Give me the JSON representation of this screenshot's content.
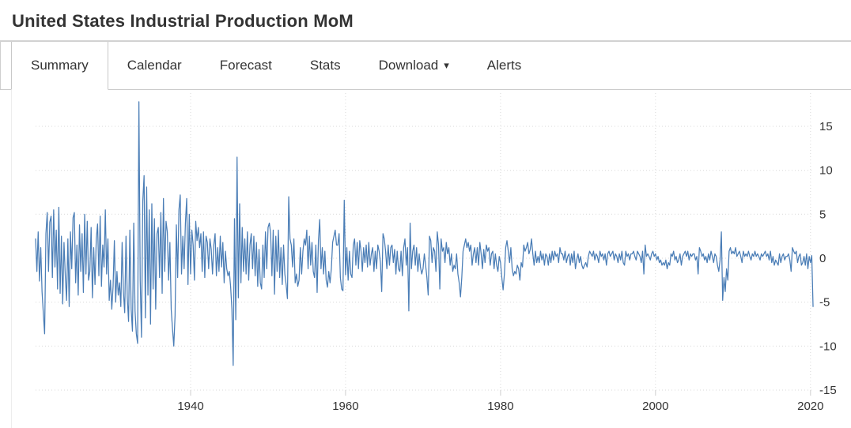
{
  "header": {
    "title": "United States Industrial Production MoM"
  },
  "tabs": {
    "caret_glyph": "▾",
    "items": [
      {
        "label": "Summary",
        "active": true
      },
      {
        "label": "Calendar",
        "active": false
      },
      {
        "label": "Forecast",
        "active": false
      },
      {
        "label": "Stats",
        "active": false
      },
      {
        "label": "Download",
        "active": false,
        "has_dropdown": true
      },
      {
        "label": "Alerts",
        "active": false
      }
    ]
  },
  "chart_data": {
    "type": "line",
    "title": "United States Industrial Production MoM",
    "xlabel": "",
    "ylabel": "",
    "legend": "none",
    "grid": "dotted",
    "x_ticks": [
      1940,
      1960,
      1980,
      2000,
      2020
    ],
    "y_ticks": [
      15,
      10,
      5,
      0,
      -5,
      -10,
      -15
    ],
    "xlim": [
      1920,
      2020.33
    ],
    "ylim": [
      -15,
      18.8
    ],
    "series": [
      {
        "name": "Industrial Production MoM (%)",
        "color": "#4a7db6",
        "x_start": 1920,
        "points_per_year": 6,
        "values": [
          2.2,
          -1.5,
          3.0,
          -2.6,
          1.2,
          -3.8,
          -6.3,
          -8.6,
          2.8,
          5.2,
          -1.5,
          4.1,
          4.8,
          -2.2,
          5.5,
          -1.0,
          3.2,
          -3.5,
          5.8,
          -4.0,
          2.5,
          -5.2,
          1.8,
          -2.0,
          -4.8,
          2.2,
          -5.5,
          3.0,
          -1.2,
          4.6,
          5.2,
          -2.8,
          1.5,
          -4.2,
          3.8,
          -1.5,
          2.8,
          -3.9,
          5.0,
          -1.8,
          4.2,
          -2.5,
          -1.5,
          3.5,
          -4.5,
          1.2,
          -3.0,
          2.2,
          3.9,
          -2.0,
          4.8,
          -3.2,
          1.5,
          -1.0,
          5.5,
          -1.8,
          2.2,
          -4.8,
          -2.5,
          -5.8,
          -3.2,
          2.0,
          -5.0,
          -1.5,
          -4.2,
          -2.8,
          -5.5,
          1.8,
          -3.8,
          -6.2,
          2.5,
          -4.5,
          -7.2,
          3.2,
          -5.8,
          -8.3,
          4.0,
          -6.0,
          -8.6,
          -9.7,
          17.8,
          -2.5,
          -9.0,
          6.5,
          9.4,
          -6.8,
          8.1,
          -4.2,
          5.5,
          -7.5,
          6.2,
          -3.5,
          4.5,
          -5.8,
          2.8,
          3.5,
          -2.2,
          5.2,
          -4.0,
          6.8,
          -1.5,
          4.2,
          3.0,
          -2.5,
          1.8,
          -5.8,
          -8.0,
          -10.0,
          -6.5,
          3.8,
          -2.2,
          5.5,
          7.2,
          -1.8,
          2.5,
          -1.2,
          4.0,
          6.8,
          -3.0,
          5.0,
          -1.8,
          3.2,
          1.5,
          -2.5,
          4.2,
          2.0,
          3.5,
          1.2,
          2.8,
          -1.5,
          3.0,
          -2.2,
          2.5,
          1.8,
          -1.2,
          2.2,
          1.0,
          -1.8,
          1.5,
          2.8,
          -2.0,
          1.2,
          -1.5,
          2.5,
          -1.0,
          1.8,
          -2.8,
          0.8,
          -1.2,
          -2.0,
          -1.5,
          -3.2,
          -5.8,
          -12.2,
          4.5,
          -7.0,
          11.5,
          -4.5,
          6.2,
          -2.8,
          3.5,
          -1.5,
          2.2,
          -1.8,
          3.0,
          -2.5,
          1.5,
          2.8,
          -1.2,
          2.5,
          -2.0,
          1.8,
          -3.2,
          1.0,
          -2.8,
          -3.5,
          1.5,
          -2.2,
          3.0,
          -1.2,
          3.5,
          4.0,
          2.8,
          -2.0,
          3.2,
          -4.1,
          2.5,
          -1.5,
          3.2,
          -2.2,
          1.2,
          -3.0,
          1.5,
          -1.8,
          -3.0,
          -4.6,
          7.0,
          2.2,
          1.5,
          -1.0,
          2.2,
          -2.8,
          -1.8,
          -3.2,
          -2.5,
          1.2,
          -1.8,
          0.8,
          2.2,
          1.5,
          3.2,
          -1.2,
          2.5,
          -0.8,
          1.8,
          -1.5,
          -2.2,
          1.5,
          -3.9,
          2.0,
          4.4,
          -1.2,
          1.2,
          -1.8,
          0.8,
          -2.5,
          -3.3,
          -1.5,
          -2.8,
          -1.2,
          1.8,
          2.5,
          3.2,
          1.5,
          1.5,
          2.8,
          -2.2,
          -3.5,
          -3.7,
          6.6,
          -1.9,
          1.2,
          -2.5,
          0.8,
          -1.8,
          -2.2,
          1.5,
          2.2,
          -0.8,
          1.8,
          -1.2,
          2.0,
          0.8,
          -1.5,
          1.2,
          -0.5,
          1.5,
          -1.0,
          1.8,
          -0.8,
          0.5,
          1.2,
          -1.5,
          0.8,
          -1.2,
          1.5,
          0.8,
          -0.5,
          -3.8,
          2.8,
          2.2,
          0.8,
          -1.2,
          1.5,
          -0.8,
          1.2,
          1.5,
          -0.5,
          1.0,
          -1.8,
          0.8,
          -1.2,
          -1.5,
          0.8,
          -2.0,
          1.2,
          2.2,
          -0.8,
          1.2,
          -6.0,
          4.0,
          -1.2,
          0.8,
          1.5,
          -0.8,
          1.2,
          -1.5,
          0.5,
          -1.0,
          -1.8,
          -1.2,
          0.5,
          -0.8,
          -2.2,
          -4.2,
          2.5,
          2.0,
          -0.5,
          1.2,
          0.8,
          -1.5,
          3.0,
          1.5,
          -3.5,
          2.2,
          0.8,
          1.2,
          -0.5,
          1.8,
          0.5,
          1.2,
          -0.8,
          0.5,
          -1.5,
          -0.8,
          -1.2,
          0.5,
          -1.8,
          -2.8,
          -4.4,
          -2.2,
          0.8,
          1.5,
          2.2,
          1.2,
          1.8,
          0.8,
          1.5,
          -0.8,
          0.5,
          1.2,
          -0.5,
          1.2,
          -0.8,
          1.8,
          0.5,
          -1.2,
          1.0,
          -0.5,
          1.5,
          0.8,
          1.2,
          -0.8,
          0.5,
          0.8,
          -1.2,
          0.5,
          -0.8,
          -1.5,
          0.2,
          -0.5,
          -2.2,
          -3.6,
          -1.8,
          1.2,
          2.0,
          0.8,
          -0.5,
          1.2,
          -1.2,
          -2.0,
          -1.5,
          -1.8,
          -0.8,
          -1.2,
          -2.5,
          -0.5,
          -1.0,
          1.5,
          0.8,
          1.2,
          1.8,
          0.5,
          1.0,
          2.2,
          0.5,
          -0.8,
          0.8,
          -0.5,
          0.2,
          -0.5,
          0.8,
          -0.2,
          0.5,
          -0.8,
          0.5,
          0.2,
          -0.8,
          0.5,
          -0.5,
          0.8,
          -0.2,
          0.8,
          0.2,
          0.5,
          -0.5,
          1.2,
          0.5,
          0.5,
          -0.2,
          0.8,
          -0.5,
          0.2,
          0.5,
          -0.8,
          0.5,
          -0.5,
          0.8,
          -1.2,
          -0.2,
          0.5,
          -0.5,
          0.2,
          -0.8,
          -1.2,
          -0.8,
          -0.5,
          -1.0,
          0.2,
          0.8,
          0.5,
          0.2,
          0.8,
          -0.2,
          0.5,
          0.2,
          -0.5,
          0.8,
          0.2,
          0.5,
          -0.2,
          0.5,
          -0.8,
          0.5,
          0.8,
          0.2,
          0.5,
          0.8,
          -0.2,
          0.5,
          0.2,
          -0.5,
          0.5,
          -0.2,
          0.8,
          -0.5,
          -0.8,
          0.8,
          0.2,
          0.5,
          -0.2,
          0.5,
          0.5,
          0.8,
          0.2,
          -0.2,
          0.8,
          0.5,
          0.2,
          -0.5,
          0.8,
          -1.8,
          1.5,
          0.2,
          0.5,
          0.2,
          -0.2,
          0.5,
          0.8,
          0.2,
          0.5,
          -0.2,
          0.2,
          -0.5,
          -0.2,
          -0.8,
          -0.5,
          -0.8,
          -0.2,
          -1.2,
          -0.5,
          -0.8,
          0.5,
          0.2,
          0.8,
          -0.2,
          0.2,
          -0.5,
          -0.2,
          0.5,
          -0.8,
          0.2,
          0.5,
          0.8,
          0.2,
          0.8,
          -0.2,
          0.5,
          0.2,
          0.5,
          0.5,
          -0.2,
          0.2,
          -1.8,
          1.2,
          0.8,
          0.2,
          0.5,
          -0.2,
          0.2,
          -0.5,
          0.5,
          -0.2,
          0.8,
          0.2,
          -0.5,
          0.5,
          0.2,
          -0.8,
          -1.5,
          -0.2,
          3.0,
          -4.8,
          -2.2,
          -3.8,
          -1.2,
          -2.5,
          0.8,
          1.2,
          0.5,
          0.8,
          0.5,
          1.2,
          0.2,
          0.5,
          0.8,
          0.2,
          -0.5,
          0.8,
          0.2,
          0.5,
          0.2,
          0.8,
          0.2,
          -0.2,
          0.5,
          0.2,
          0.8,
          0.2,
          0.5,
          0.2,
          -0.2,
          0.5,
          0.2,
          0.5,
          0.8,
          0.2,
          0.5,
          -0.2,
          0.8,
          -0.5,
          0.2,
          -0.8,
          -0.2,
          -0.5,
          -0.8,
          0.5,
          -0.5,
          0.2,
          0.5,
          -0.2,
          0.2,
          0.2,
          0.5,
          -0.2,
          -1.5,
          1.2,
          0.8,
          0.5,
          0.8,
          -0.5,
          0.2,
          0.5,
          -0.8,
          -0.5,
          0.2,
          -0.8,
          0.5,
          -1.2,
          0.2,
          -0.5,
          0.3,
          -5.5
        ]
      }
    ]
  }
}
